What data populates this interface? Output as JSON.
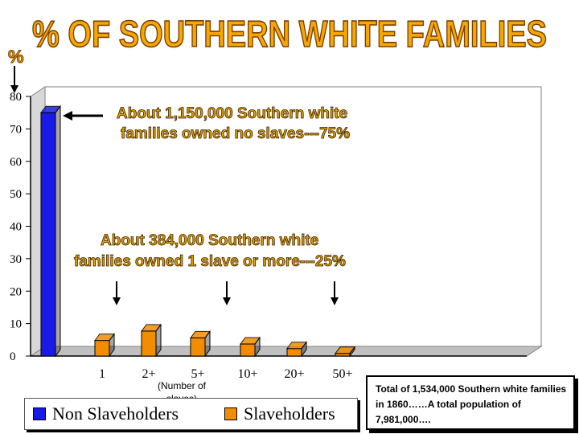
{
  "chart_data": {
    "type": "bar",
    "title": "% OF SOUTHERN WHITE FAMILIES",
    "ylabel": "%",
    "xlabel": "(Number of slaves)",
    "ylim": [
      0,
      80
    ],
    "yticks": [
      "0",
      "10",
      "20",
      "30",
      "40",
      "50",
      "60",
      "70",
      "80"
    ],
    "grid": false,
    "categories": [
      "",
      "1",
      "2+",
      "5+",
      "10+",
      "20+",
      "50+"
    ],
    "series": [
      {
        "name": "Non Slaveholders",
        "color": "#1a1ae6",
        "values": [
          75,
          0,
          0,
          0,
          0,
          0,
          0
        ]
      },
      {
        "name": "Slaveholders",
        "color": "#f28c00",
        "values": [
          0,
          4.8,
          7.7,
          5.6,
          3.7,
          2.3,
          0.8
        ]
      }
    ],
    "annotations": [
      "About 1,150,000 Southern white families owned no slaves---75%",
      "About 384,000 Southern white families owned 1 slave or more---25%"
    ],
    "legend_position": "bottom-left"
  },
  "annotation_lines": {
    "top": [
      "About 1,150,000 Southern white",
      "families owned no slaves---75%"
    ],
    "middle": [
      "About 384,000 Southern white",
      "families owned 1 slave or more---25%"
    ]
  },
  "xlabel_lines": [
    "(Number of",
    "slaves)"
  ],
  "total_box": {
    "text": "Total of 1,534,000 Southern white families in 1860……A total population of 7,981,000…."
  },
  "colors": {
    "title_fill": "#f7a800",
    "title_stroke": "#7a3d00",
    "nonslave": "#1a1ae6",
    "slave": "#f28c00"
  }
}
